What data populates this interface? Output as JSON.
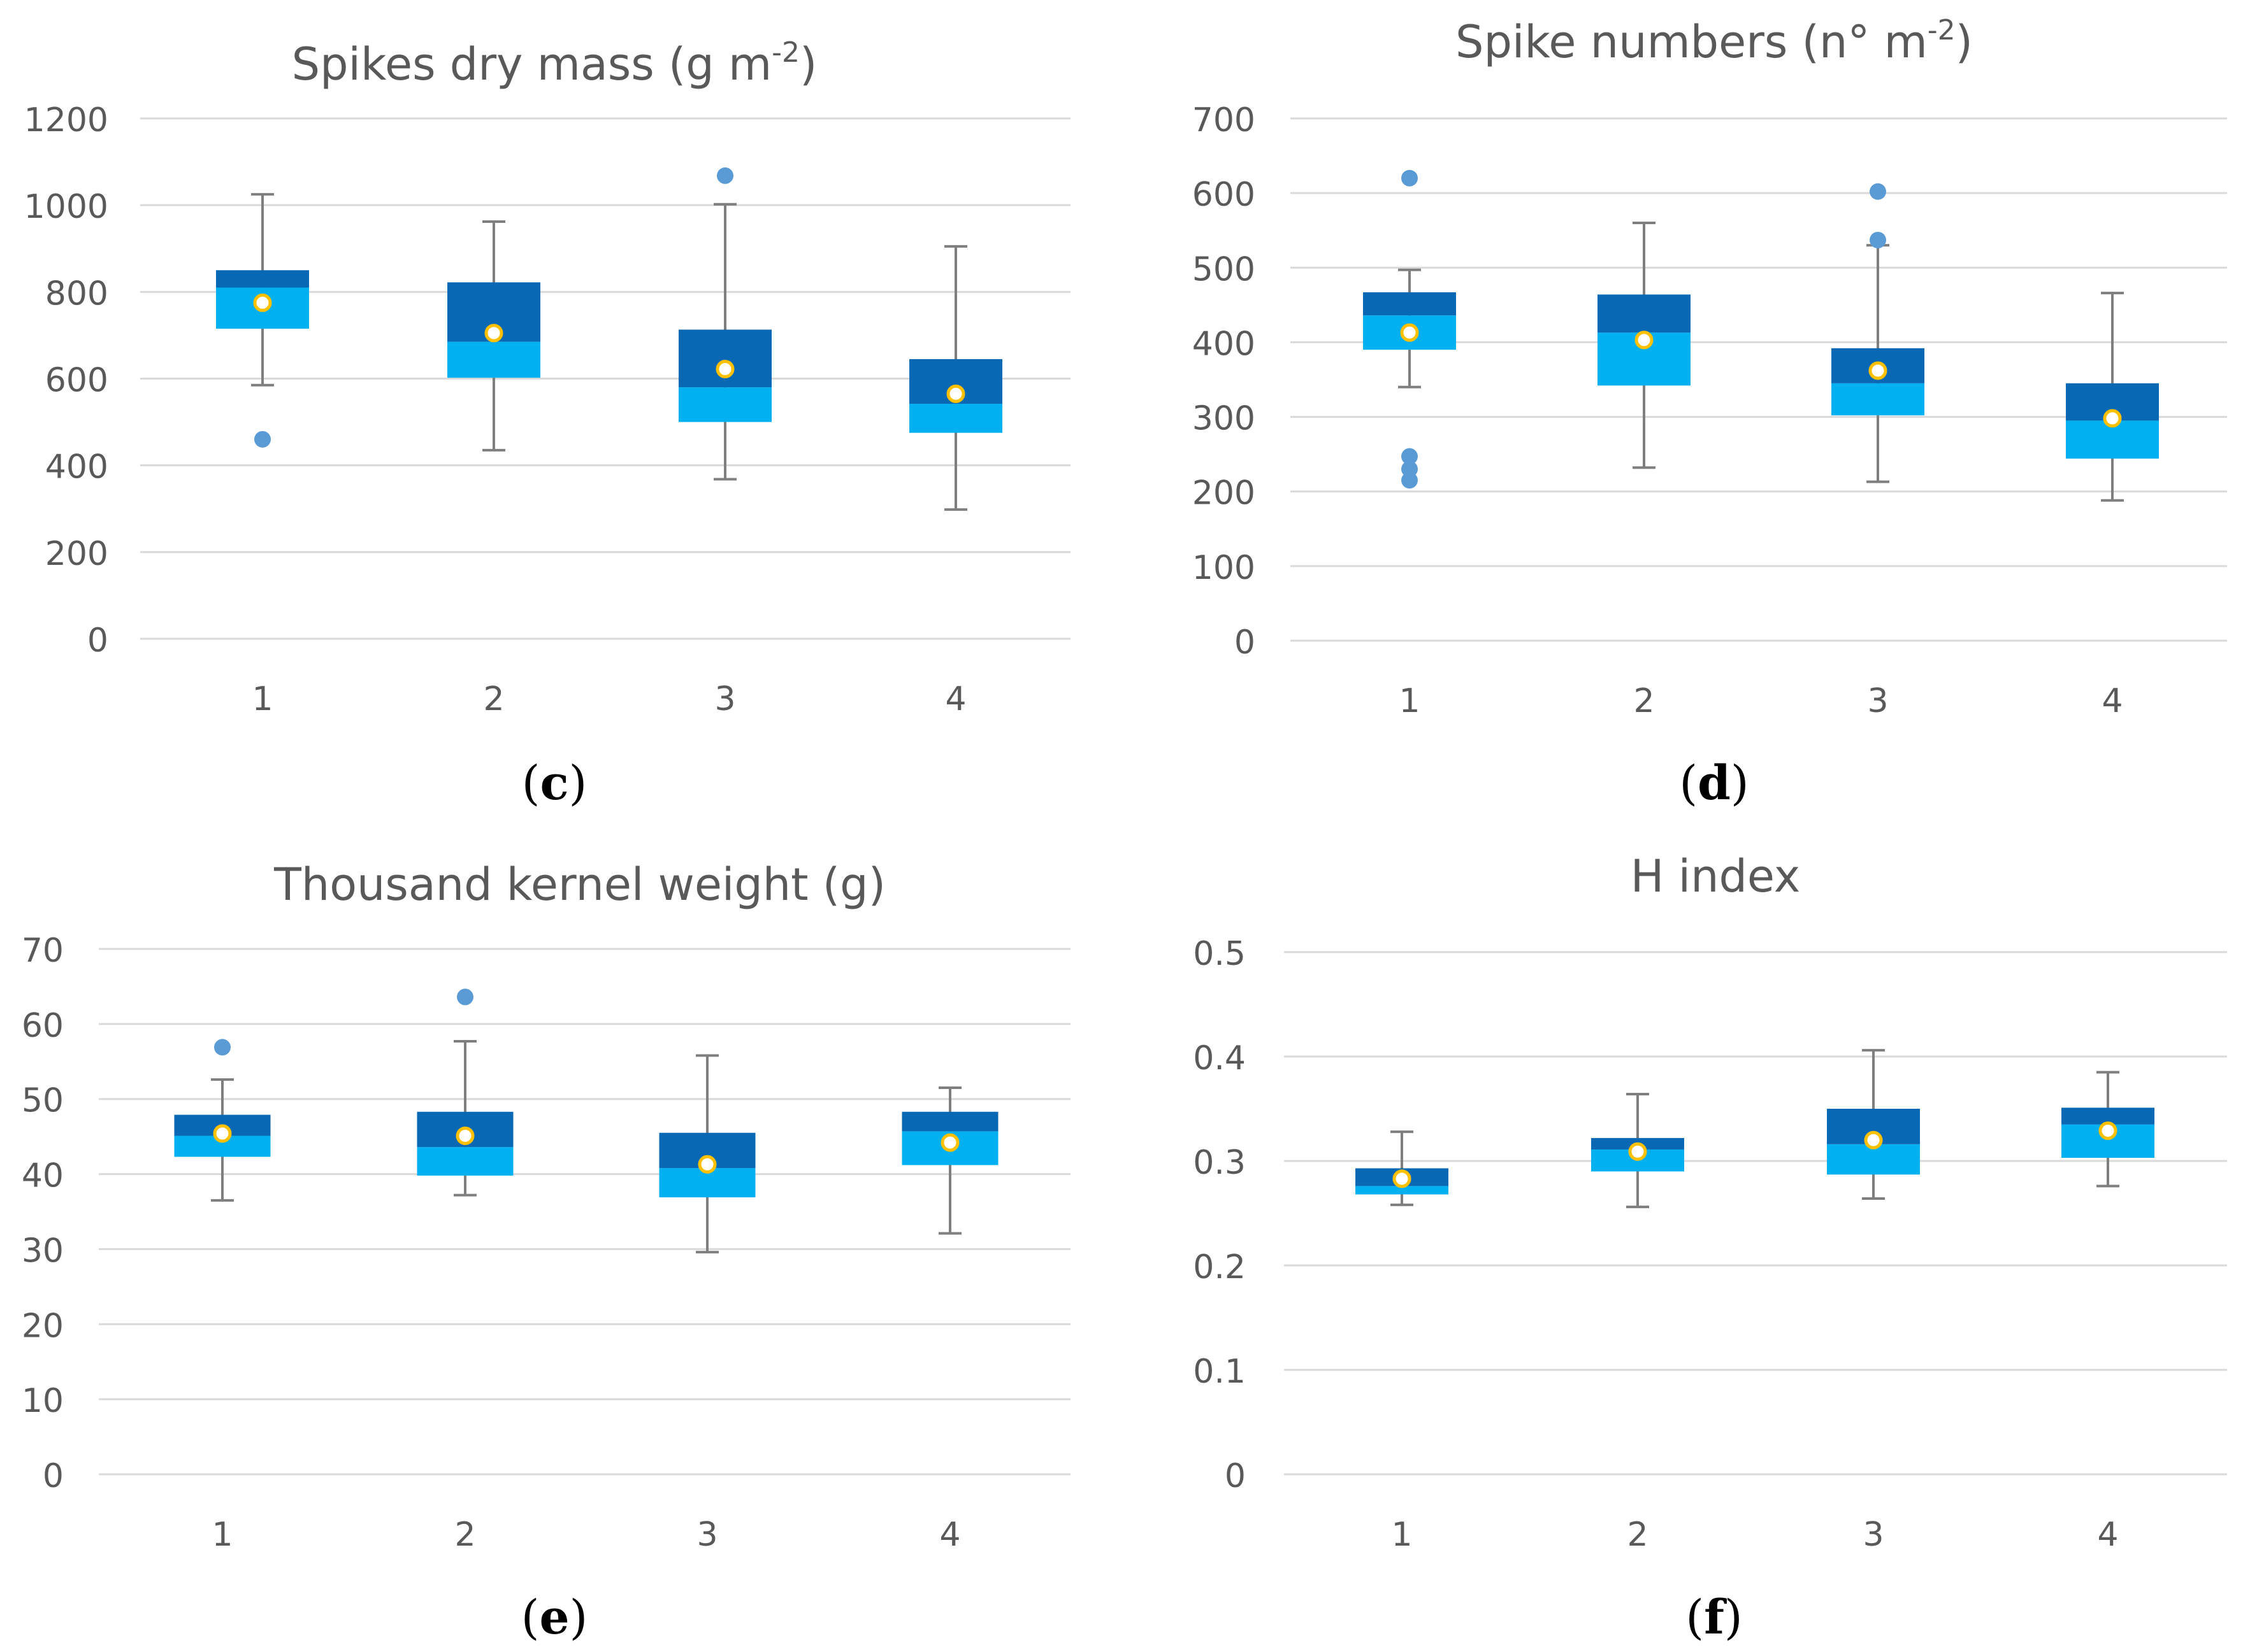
{
  "colors": {
    "upper_box": "#0868b3",
    "lower_box": "#00b0f0",
    "mean_fill": "#ffffff",
    "mean_stroke": "#ffc000",
    "outlier": "#5b9bd5",
    "whisker": "#7f7f7f",
    "grid": "#d9d9d9",
    "text": "#595959"
  },
  "chart_data": [
    {
      "panel": "(c)",
      "panel_letter": "c",
      "type": "box",
      "title_main": "Spikes dry mass (g m",
      "title_sup": "-2",
      "title_end": ")",
      "ylim": [
        0,
        1200
      ],
      "yticks": [
        0,
        200,
        400,
        600,
        800,
        1000,
        1200
      ],
      "ytick_labels": [
        "0",
        "200",
        "400",
        "600",
        "800",
        "1000",
        "1200"
      ],
      "categories": [
        "1",
        "2",
        "3",
        "4"
      ],
      "boxes": [
        {
          "min": 585,
          "q1": 715,
          "median": 810,
          "q3": 850,
          "max": 1025,
          "mean": 775,
          "outliers": [
            460
          ]
        },
        {
          "min": 435,
          "q1": 602,
          "median": 685,
          "q3": 822,
          "max": 962,
          "mean": 705,
          "outliers": []
        },
        {
          "min": 368,
          "q1": 500,
          "median": 580,
          "q3": 713,
          "max": 1002,
          "mean": 622,
          "outliers": [
            1068
          ]
        },
        {
          "min": 298,
          "q1": 475,
          "median": 542,
          "q3": 645,
          "max": 905,
          "mean": 565,
          "outliers": []
        }
      ]
    },
    {
      "panel": "(d)",
      "panel_letter": "d",
      "type": "box",
      "title_main": "Spike numbers (n° m",
      "title_sup": "-2",
      "title_end": ")",
      "ylim": [
        0,
        700
      ],
      "yticks": [
        0,
        100,
        200,
        300,
        400,
        500,
        600,
        700
      ],
      "ytick_labels": [
        "0",
        "100",
        "200",
        "300",
        "400",
        "500",
        "600",
        "700"
      ],
      "categories": [
        "1",
        "2",
        "3",
        "4"
      ],
      "boxes": [
        {
          "min": 340,
          "q1": 390,
          "median": 436,
          "q3": 467,
          "max": 497,
          "mean": 413,
          "outliers": [
            620,
            247,
            230,
            215
          ]
        },
        {
          "min": 232,
          "q1": 342,
          "median": 413,
          "q3": 464,
          "max": 560,
          "mean": 403,
          "outliers": []
        },
        {
          "min": 213,
          "q1": 302,
          "median": 345,
          "q3": 392,
          "max": 530,
          "mean": 362,
          "outliers": [
            602,
            537
          ]
        },
        {
          "min": 188,
          "q1": 244,
          "median": 295,
          "q3": 345,
          "max": 466,
          "mean": 298,
          "outliers": []
        }
      ]
    },
    {
      "panel": "(e)",
      "panel_letter": "e",
      "type": "box",
      "title_main": "Thousand kernel weight (g)",
      "title_sup": "",
      "title_end": "",
      "ylim": [
        0,
        70
      ],
      "yticks": [
        0,
        10,
        20,
        30,
        40,
        50,
        60,
        70
      ],
      "ytick_labels": [
        "0",
        "10",
        "20",
        "30",
        "40",
        "50",
        "60",
        "70"
      ],
      "categories": [
        "1",
        "2",
        "3",
        "4"
      ],
      "boxes": [
        {
          "min": 36.5,
          "q1": 42.3,
          "median": 45.1,
          "q3": 47.9,
          "max": 52.6,
          "mean": 45.4,
          "outliers": [
            56.9
          ]
        },
        {
          "min": 37.2,
          "q1": 39.8,
          "median": 43.6,
          "q3": 48.3,
          "max": 57.7,
          "mean": 45.1,
          "outliers": [
            63.6
          ]
        },
        {
          "min": 29.6,
          "q1": 36.9,
          "median": 40.8,
          "q3": 45.5,
          "max": 55.8,
          "mean": 41.3,
          "outliers": []
        },
        {
          "min": 32.1,
          "q1": 41.2,
          "median": 45.7,
          "q3": 48.3,
          "max": 51.5,
          "mean": 44.2,
          "outliers": []
        }
      ]
    },
    {
      "panel": "(f)",
      "panel_letter": "f",
      "type": "box",
      "title_main": "H index",
      "title_sup": "",
      "title_end": "",
      "ylim": [
        0,
        0.5
      ],
      "yticks": [
        0,
        0.1,
        0.2,
        0.3,
        0.4,
        0.5
      ],
      "ytick_labels": [
        "0",
        "0.1",
        "0.2",
        "0.3",
        "0.4",
        "0.5"
      ],
      "categories": [
        "1",
        "2",
        "3",
        "4"
      ],
      "boxes": [
        {
          "min": 0.258,
          "q1": 0.268,
          "median": 0.276,
          "q3": 0.293,
          "max": 0.328,
          "mean": 0.283,
          "outliers": []
        },
        {
          "min": 0.256,
          "q1": 0.29,
          "median": 0.311,
          "q3": 0.322,
          "max": 0.364,
          "mean": 0.309,
          "outliers": []
        },
        {
          "min": 0.264,
          "q1": 0.287,
          "median": 0.316,
          "q3": 0.35,
          "max": 0.406,
          "mean": 0.32,
          "outliers": []
        },
        {
          "min": 0.276,
          "q1": 0.303,
          "median": 0.335,
          "q3": 0.351,
          "max": 0.385,
          "mean": 0.329,
          "outliers": []
        }
      ]
    }
  ]
}
